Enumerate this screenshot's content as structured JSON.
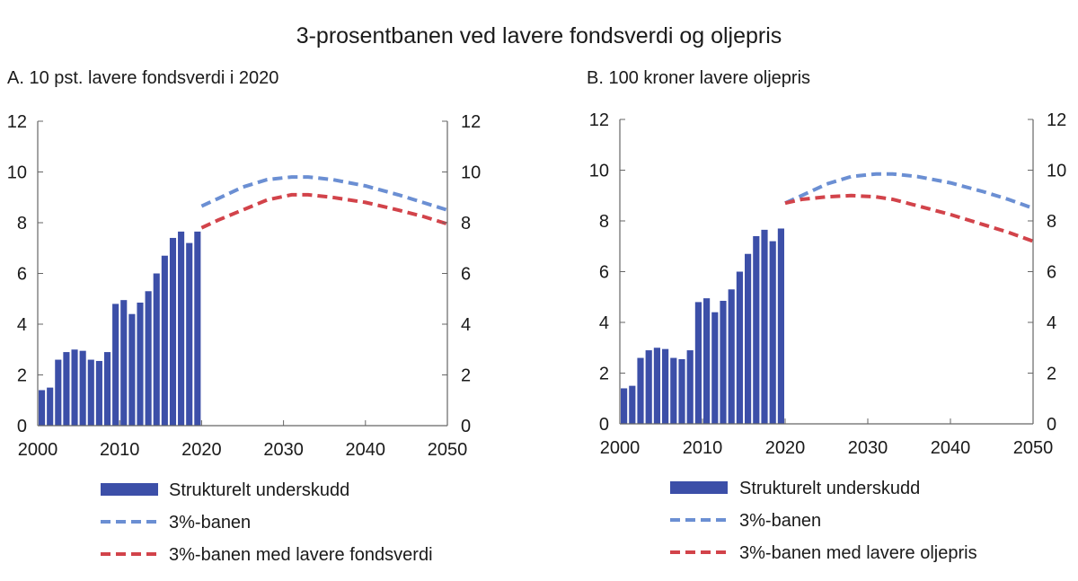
{
  "title": "3-prosentbanen ved lavere fondsverdi og oljepris",
  "colors": {
    "bar": "#3c4fa8",
    "baseline": "#6b8fd3",
    "alternative": "#d2434a",
    "axis": "#666666"
  },
  "chart_data": [
    {
      "id": "A",
      "type": "bar",
      "title": "A.  10 pst. lavere fondsverdi i 2020",
      "x_ticks": [
        "2000",
        "2010",
        "2020",
        "2030",
        "2040",
        "2050"
      ],
      "y_ticks": [
        "0",
        "2",
        "4",
        "6",
        "8",
        "10",
        "12"
      ],
      "xlim": [
        2000,
        2050
      ],
      "ylim": [
        0,
        12
      ],
      "bars": {
        "name": "Strukturelt underskudd",
        "x": [
          2001,
          2002,
          2003,
          2004,
          2005,
          2006,
          2007,
          2008,
          2009,
          2010,
          2011,
          2012,
          2013,
          2014,
          2015,
          2016,
          2017,
          2018,
          2019
        ],
        "values": [
          1.4,
          1.5,
          2.6,
          2.9,
          3.0,
          2.95,
          2.6,
          2.55,
          2.9,
          4.8,
          4.95,
          4.4,
          4.85,
          5.3,
          6.0,
          6.7,
          7.4,
          7.65,
          7.2
        ]
      },
      "lines": [
        {
          "name": "3%-banen",
          "style": "baseline",
          "x": [
            2020,
            2022,
            2025,
            2028,
            2031,
            2033,
            2036,
            2040,
            2044,
            2047,
            2050
          ],
          "values": [
            8.65,
            8.95,
            9.4,
            9.7,
            9.8,
            9.8,
            9.7,
            9.45,
            9.1,
            8.8,
            8.5
          ]
        },
        {
          "name": "3%-banen med lavere fondsverdi",
          "style": "alternative",
          "x": [
            2020,
            2022,
            2025,
            2028,
            2031,
            2033,
            2036,
            2040,
            2044,
            2047,
            2050
          ],
          "values": [
            7.8,
            8.1,
            8.5,
            8.9,
            9.1,
            9.1,
            9.0,
            8.8,
            8.5,
            8.25,
            7.95
          ]
        }
      ],
      "last_bar": {
        "x": 2020,
        "value": 7.65
      },
      "legend": [
        "Strukturelt underskudd",
        "3%-banen",
        "3%-banen med lavere fondsverdi"
      ]
    },
    {
      "id": "B",
      "type": "bar",
      "title": "B.   100 kroner lavere oljepris",
      "x_ticks": [
        "2000",
        "2010",
        "2020",
        "2030",
        "2040",
        "2050"
      ],
      "y_ticks": [
        "0",
        "2",
        "4",
        "6",
        "8",
        "10",
        "12"
      ],
      "xlim": [
        2000,
        2050
      ],
      "ylim": [
        0,
        12
      ],
      "bars": {
        "name": "Strukturelt underskudd",
        "x": [
          2001,
          2002,
          2003,
          2004,
          2005,
          2006,
          2007,
          2008,
          2009,
          2010,
          2011,
          2012,
          2013,
          2014,
          2015,
          2016,
          2017,
          2018,
          2019
        ],
        "values": [
          1.4,
          1.5,
          2.6,
          2.9,
          3.0,
          2.95,
          2.6,
          2.55,
          2.9,
          4.8,
          4.95,
          4.4,
          4.85,
          5.3,
          6.0,
          6.7,
          7.4,
          7.65,
          7.2
        ]
      },
      "lines": [
        {
          "name": "3%-banen",
          "style": "baseline",
          "x": [
            2020,
            2022,
            2025,
            2028,
            2031,
            2033,
            2036,
            2040,
            2044,
            2047,
            2050
          ],
          "values": [
            8.7,
            9.0,
            9.45,
            9.75,
            9.85,
            9.85,
            9.75,
            9.5,
            9.15,
            8.85,
            8.5
          ]
        },
        {
          "name": "3%-banen med lavere oljepris",
          "style": "alternative",
          "x": [
            2020,
            2022,
            2025,
            2028,
            2031,
            2033,
            2036,
            2040,
            2044,
            2047,
            2050
          ],
          "values": [
            8.7,
            8.85,
            8.95,
            9.0,
            8.95,
            8.85,
            8.6,
            8.25,
            7.85,
            7.55,
            7.2
          ]
        }
      ],
      "last_bar": {
        "x": 2020,
        "value": 7.7
      },
      "legend": [
        "Strukturelt underskudd",
        "3%-banen",
        "3%-banen med lavere oljepris"
      ]
    }
  ]
}
